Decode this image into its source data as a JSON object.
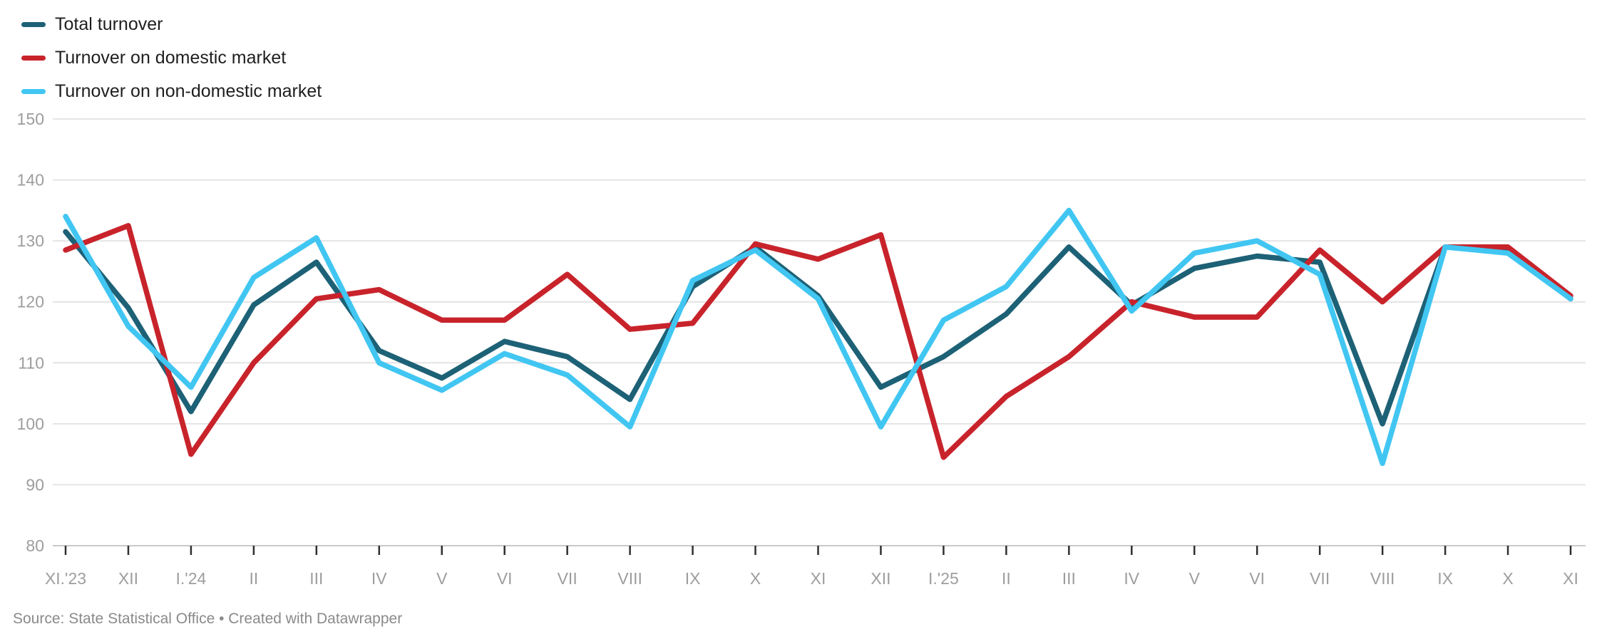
{
  "chart_data": {
    "type": "line",
    "title": "",
    "categories": [
      "XI.'23",
      "XII",
      "I.'24",
      "II",
      "III",
      "IV",
      "V",
      "VI",
      "VII",
      "VIII",
      "IX",
      "X",
      "XI",
      "XII",
      "I.'25",
      "II",
      "III",
      "IV",
      "V",
      "VI",
      "VII",
      "VIII",
      "IX",
      "X",
      "XI"
    ],
    "series": [
      {
        "name": "Total turnover",
        "color": "#1d6176",
        "values": [
          131.5,
          119,
          102,
          119.5,
          126.5,
          112,
          107.5,
          113.5,
          111,
          104,
          122.5,
          129,
          121,
          106,
          111,
          118,
          129,
          119.5,
          125.5,
          127.5,
          126.5,
          100,
          129,
          128.5,
          120.5
        ]
      },
      {
        "name": "Turnover on domestic market",
        "color": "#c8232b",
        "values": [
          128.5,
          132.5,
          95,
          110,
          120.5,
          122,
          117,
          117,
          124.5,
          115.5,
          116.5,
          129.5,
          127,
          131,
          94.5,
          104.5,
          111,
          120,
          117.5,
          117.5,
          128.5,
          120,
          129,
          129,
          121
        ]
      },
      {
        "name": "Turnover on non-domestic market",
        "color": "#41c6f2",
        "values": [
          134,
          116,
          106,
          124,
          130.5,
          110,
          105.5,
          111.5,
          108,
          99.5,
          123.5,
          128.5,
          120.5,
          99.5,
          117,
          122.5,
          135,
          118.5,
          128,
          130,
          124.5,
          93.5,
          129,
          128,
          120.5
        ]
      }
    ],
    "xlabel": "",
    "ylabel": "",
    "ylim": [
      80,
      150
    ],
    "yticks": [
      80,
      90,
      100,
      110,
      120,
      130,
      140,
      150
    ],
    "grid": "horizontal",
    "legend_position": "top-left"
  },
  "source": {
    "text": "Source: State Statistical Office • Created with Datawrapper"
  },
  "colors": {
    "background": "#ffffff",
    "grid": "#e4e4e4",
    "baseline": "#c9c9c9",
    "tick": "#2f2f2f",
    "axis_label": "#9d9d9d",
    "legend_text": "#1f1f1f",
    "source_text": "#8a8a8a"
  }
}
